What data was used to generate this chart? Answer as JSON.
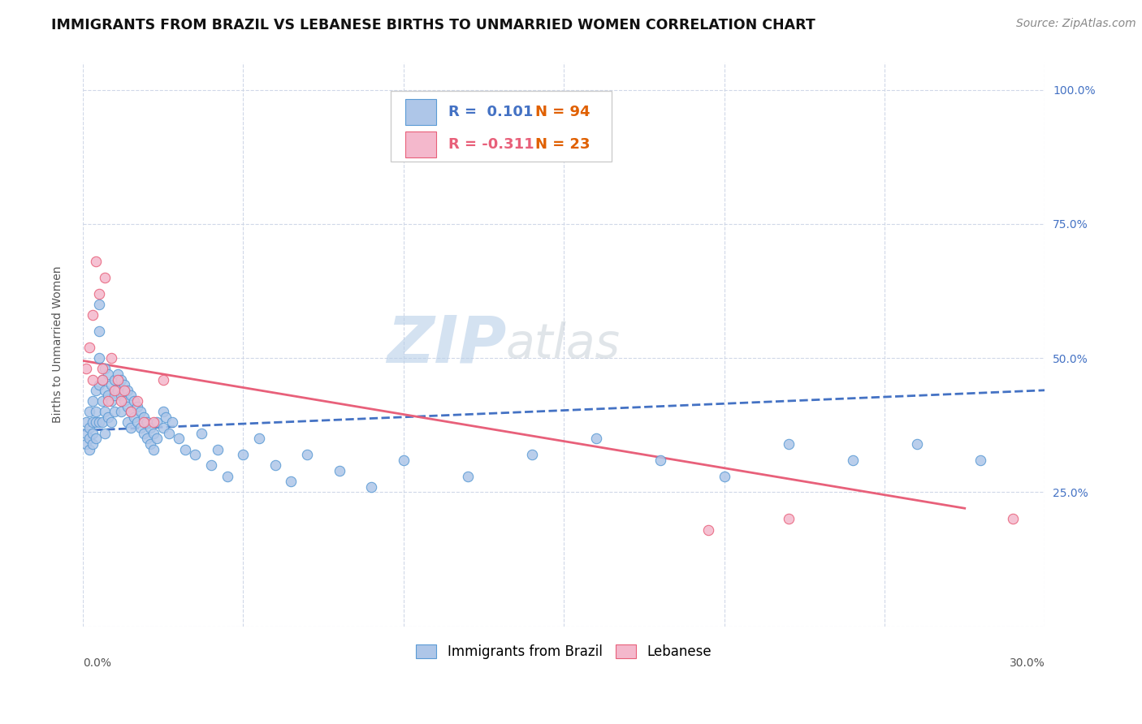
{
  "title": "IMMIGRANTS FROM BRAZIL VS LEBANESE BIRTHS TO UNMARRIED WOMEN CORRELATION CHART",
  "source": "Source: ZipAtlas.com",
  "ylabel": "Births to Unmarried Women",
  "legend_brazil": "Immigrants from Brazil",
  "legend_lebanese": "Lebanese",
  "R_brazil": 0.101,
  "N_brazil": 94,
  "R_lebanese": -0.311,
  "N_lebanese": 23,
  "brazil_color": "#aec6e8",
  "lebanese_color": "#f4b8cc",
  "brazil_edge_color": "#5b9bd5",
  "lebanese_edge_color": "#e8607a",
  "brazil_line_color": "#4472c4",
  "lebanese_line_color": "#e8607a",
  "watermark_color": "#c5d8ed",
  "xmin": 0.0,
  "xmax": 0.3,
  "ymin": 0.0,
  "ymax": 1.05,
  "yticks": [
    0.0,
    0.25,
    0.5,
    0.75,
    1.0
  ],
  "ytick_labels": [
    "",
    "25.0%",
    "50.0%",
    "75.0%",
    "100.0%"
  ],
  "brazil_scatter_x": [
    0.001,
    0.001,
    0.001,
    0.002,
    0.002,
    0.002,
    0.002,
    0.003,
    0.003,
    0.003,
    0.003,
    0.004,
    0.004,
    0.004,
    0.004,
    0.005,
    0.005,
    0.005,
    0.005,
    0.005,
    0.006,
    0.006,
    0.006,
    0.007,
    0.007,
    0.007,
    0.007,
    0.008,
    0.008,
    0.008,
    0.009,
    0.009,
    0.009,
    0.01,
    0.01,
    0.01,
    0.011,
    0.011,
    0.012,
    0.012,
    0.012,
    0.013,
    0.013,
    0.014,
    0.014,
    0.014,
    0.015,
    0.015,
    0.015,
    0.016,
    0.016,
    0.017,
    0.017,
    0.018,
    0.018,
    0.019,
    0.019,
    0.02,
    0.02,
    0.021,
    0.021,
    0.022,
    0.022,
    0.023,
    0.023,
    0.025,
    0.025,
    0.026,
    0.027,
    0.028,
    0.03,
    0.032,
    0.035,
    0.037,
    0.04,
    0.042,
    0.045,
    0.05,
    0.055,
    0.06,
    0.065,
    0.07,
    0.08,
    0.09,
    0.1,
    0.12,
    0.14,
    0.16,
    0.18,
    0.2,
    0.22,
    0.24,
    0.26,
    0.28
  ],
  "brazil_scatter_y": [
    0.38,
    0.36,
    0.34,
    0.4,
    0.37,
    0.35,
    0.33,
    0.42,
    0.38,
    0.36,
    0.34,
    0.44,
    0.4,
    0.38,
    0.35,
    0.6,
    0.55,
    0.5,
    0.45,
    0.38,
    0.46,
    0.42,
    0.38,
    0.48,
    0.44,
    0.4,
    0.36,
    0.47,
    0.43,
    0.39,
    0.45,
    0.42,
    0.38,
    0.46,
    0.43,
    0.4,
    0.47,
    0.44,
    0.46,
    0.43,
    0.4,
    0.45,
    0.42,
    0.44,
    0.41,
    0.38,
    0.43,
    0.4,
    0.37,
    0.42,
    0.39,
    0.41,
    0.38,
    0.4,
    0.37,
    0.39,
    0.36,
    0.38,
    0.35,
    0.37,
    0.34,
    0.36,
    0.33,
    0.38,
    0.35,
    0.4,
    0.37,
    0.39,
    0.36,
    0.38,
    0.35,
    0.33,
    0.32,
    0.36,
    0.3,
    0.33,
    0.28,
    0.32,
    0.35,
    0.3,
    0.27,
    0.32,
    0.29,
    0.26,
    0.31,
    0.28,
    0.32,
    0.35,
    0.31,
    0.28,
    0.34,
    0.31,
    0.34,
    0.31
  ],
  "lebanese_scatter_x": [
    0.001,
    0.002,
    0.003,
    0.003,
    0.004,
    0.005,
    0.006,
    0.006,
    0.007,
    0.008,
    0.009,
    0.01,
    0.011,
    0.012,
    0.013,
    0.015,
    0.017,
    0.019,
    0.022,
    0.025,
    0.195,
    0.22,
    0.29
  ],
  "lebanese_scatter_y": [
    0.48,
    0.52,
    0.58,
    0.46,
    0.68,
    0.62,
    0.46,
    0.48,
    0.65,
    0.42,
    0.5,
    0.44,
    0.46,
    0.42,
    0.44,
    0.4,
    0.42,
    0.38,
    0.38,
    0.46,
    0.18,
    0.2,
    0.2
  ],
  "brazil_line_x0": 0.0,
  "brazil_line_y0": 0.365,
  "brazil_line_x1": 0.3,
  "brazil_line_y1": 0.44,
  "lebanese_line_x0": 0.0,
  "lebanese_line_y0": 0.495,
  "lebanese_line_x1": 0.275,
  "lebanese_line_y1": 0.22,
  "grid_color": "#d0d8e8",
  "background_color": "#ffffff",
  "title_fontsize": 12.5,
  "axis_label_fontsize": 10,
  "tick_fontsize": 10,
  "legend_fontsize": 12,
  "source_fontsize": 10,
  "marker_size": 80
}
